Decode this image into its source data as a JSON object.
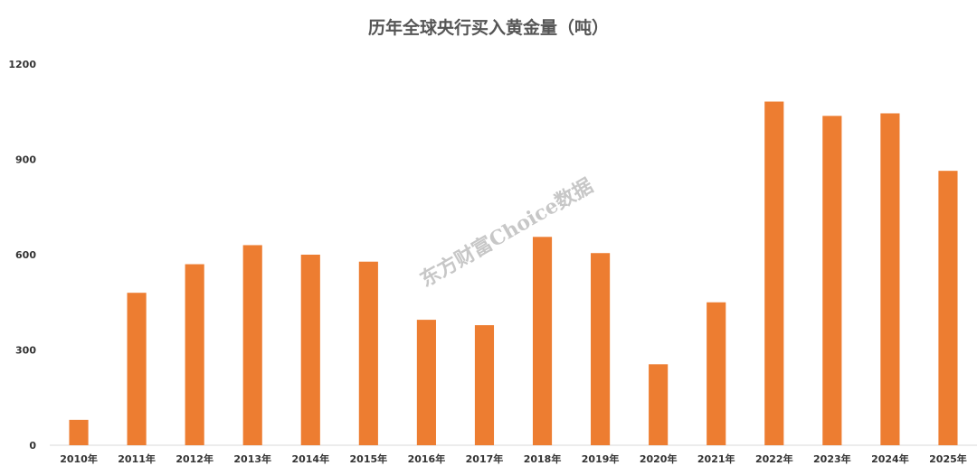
{
  "chart_data": {
    "type": "bar",
    "title": "历年全球央行买入黄金量（吨）",
    "xlabel": "",
    "ylabel": "",
    "categories": [
      "2010年",
      "2011年",
      "2012年",
      "2013年",
      "2014年",
      "2015年",
      "2016年",
      "2017年",
      "2018年",
      "2019年",
      "2020年",
      "2021年",
      "2022年",
      "2023年",
      "2024年",
      "2025年"
    ],
    "values": [
      80,
      480,
      570,
      630,
      600,
      578,
      395,
      378,
      656,
      605,
      255,
      450,
      1082,
      1037,
      1045,
      864
    ],
    "ylim": [
      0,
      1200
    ],
    "yticks": [
      0,
      300,
      600,
      900,
      1200
    ],
    "grid": false,
    "legend": "none",
    "bar_color": "#ED7D31"
  },
  "watermark": "东方财富Choice数据"
}
